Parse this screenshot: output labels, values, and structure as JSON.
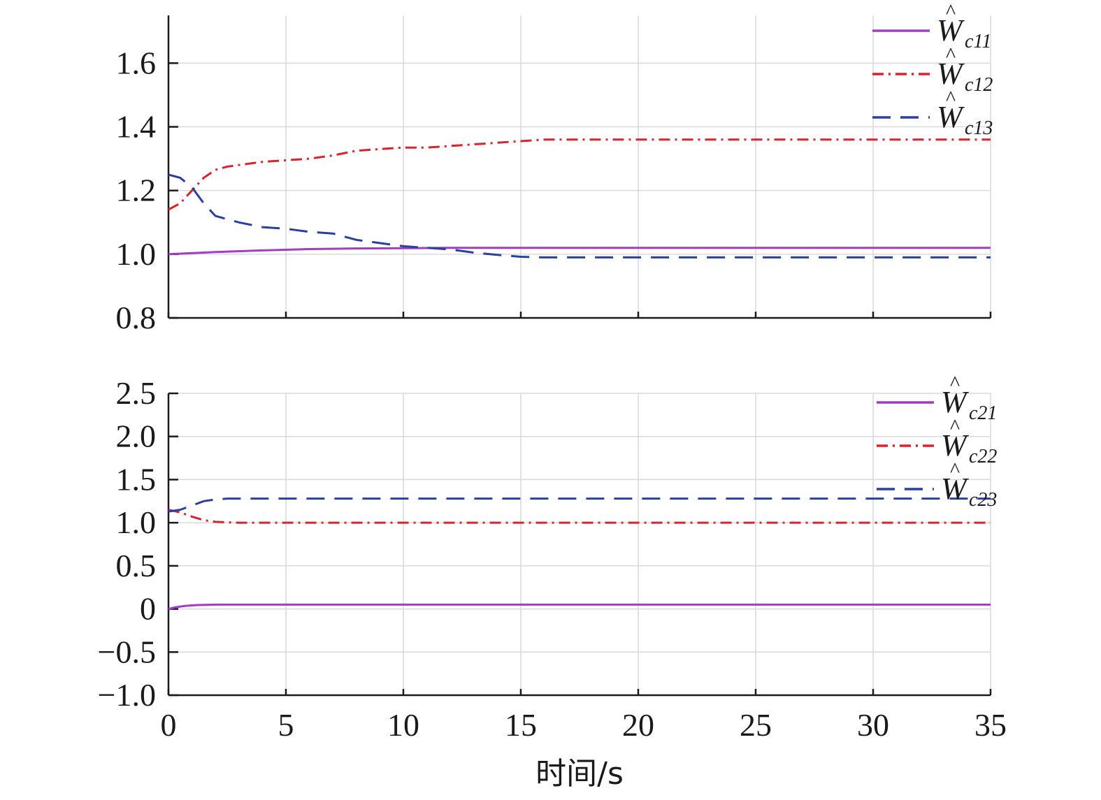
{
  "xlabel": "时间/s",
  "chart_data": [
    {
      "type": "line",
      "xlim": [
        0,
        35
      ],
      "ylim": [
        0.8,
        1.75
      ],
      "xticks": [
        0,
        5,
        10,
        15,
        20,
        25,
        30,
        35
      ],
      "yticks": [
        "0.8",
        "1.0",
        "1.2",
        "1.4",
        "1.6"
      ],
      "ytick_values": [
        0.8,
        1.0,
        1.2,
        1.4,
        1.6
      ],
      "grid": true,
      "legend_position": "top-right",
      "series": [
        {
          "name": "W",
          "sub": "c11",
          "color": "#a23cc2",
          "style": "solid",
          "x": [
            0,
            2,
            4,
            6,
            8,
            10,
            12,
            15,
            20,
            25,
            30,
            35
          ],
          "y": [
            1.0,
            1.007,
            1.012,
            1.016,
            1.018,
            1.019,
            1.02,
            1.02,
            1.02,
            1.02,
            1.02,
            1.02
          ]
        },
        {
          "name": "W",
          "sub": "c12",
          "color": "#d9232e",
          "style": "dashdot",
          "x": [
            0,
            0.5,
            1,
            1.5,
            2,
            2.5,
            3,
            4,
            5,
            6,
            7,
            8,
            9,
            10,
            11,
            12,
            13,
            14,
            15,
            16,
            18,
            20,
            25,
            30,
            35
          ],
          "y": [
            1.14,
            1.16,
            1.2,
            1.24,
            1.265,
            1.275,
            1.28,
            1.29,
            1.295,
            1.3,
            1.31,
            1.325,
            1.33,
            1.335,
            1.335,
            1.34,
            1.345,
            1.35,
            1.355,
            1.36,
            1.36,
            1.36,
            1.36,
            1.36,
            1.36
          ]
        },
        {
          "name": "W",
          "sub": "c13",
          "color": "#2a3f9e",
          "style": "dashed",
          "x": [
            0,
            0.5,
            1,
            1.5,
            2,
            3,
            4,
            5,
            6,
            7,
            8,
            9,
            10,
            11,
            12,
            13,
            14,
            15,
            16,
            18,
            20,
            25,
            30,
            35
          ],
          "y": [
            1.25,
            1.24,
            1.21,
            1.16,
            1.12,
            1.1,
            1.085,
            1.08,
            1.07,
            1.065,
            1.045,
            1.035,
            1.025,
            1.02,
            1.015,
            1.005,
            0.998,
            0.992,
            0.99,
            0.99,
            0.99,
            0.99,
            0.99,
            0.99
          ]
        }
      ]
    },
    {
      "type": "line",
      "xlim": [
        0,
        35
      ],
      "ylim": [
        -1.0,
        2.5
      ],
      "xticks": [
        0,
        5,
        10,
        15,
        20,
        25,
        30,
        35
      ],
      "xtick_labels": [
        "0",
        "5",
        "10",
        "15",
        "20",
        "25",
        "30",
        "35"
      ],
      "yticks": [
        "−1.0",
        "−0.5",
        "0",
        "0.5",
        "1.0",
        "1.5",
        "2.0",
        "2.5"
      ],
      "ytick_values": [
        -1.0,
        -0.5,
        0,
        0.5,
        1.0,
        1.5,
        2.0,
        2.5
      ],
      "grid": true,
      "legend_position": "top-right",
      "series": [
        {
          "name": "W",
          "sub": "c21",
          "color": "#a23cc2",
          "style": "solid",
          "x": [
            0,
            0.3,
            0.7,
            1.2,
            2,
            3,
            5,
            10,
            20,
            35
          ],
          "y": [
            0.0,
            0.02,
            0.035,
            0.045,
            0.05,
            0.05,
            0.05,
            0.05,
            0.05,
            0.05
          ]
        },
        {
          "name": "W",
          "sub": "c22",
          "color": "#d9232e",
          "style": "dashdot",
          "x": [
            0,
            0.5,
            1,
            1.5,
            2,
            2.5,
            3,
            4,
            5,
            10,
            20,
            35
          ],
          "y": [
            1.15,
            1.12,
            1.07,
            1.03,
            1.01,
            1.005,
            1.0,
            1.0,
            1.0,
            1.0,
            1.0,
            1.0
          ]
        },
        {
          "name": "W",
          "sub": "c23",
          "color": "#2a3f9e",
          "style": "dashed",
          "x": [
            0,
            0.5,
            1,
            1.5,
            2,
            2.5,
            3,
            4,
            5,
            10,
            20,
            35
          ],
          "y": [
            1.13,
            1.15,
            1.2,
            1.25,
            1.27,
            1.28,
            1.28,
            1.28,
            1.28,
            1.28,
            1.28,
            1.28
          ]
        }
      ]
    }
  ]
}
